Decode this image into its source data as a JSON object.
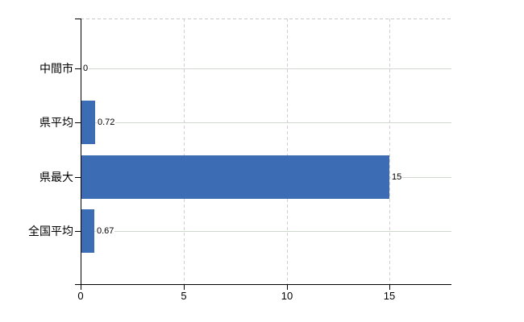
{
  "chart_data": {
    "type": "bar",
    "orientation": "horizontal",
    "title": "",
    "categories": [
      "中間市",
      "県平均",
      "県最大",
      "全国平均"
    ],
    "values": [
      0,
      0.72,
      15,
      0.67
    ],
    "value_labels": [
      "0",
      "0.72",
      "15",
      "0.67"
    ],
    "xlim": [
      0,
      18
    ],
    "xticks": [
      0,
      5,
      10,
      15
    ],
    "xtick_labels": [
      "0",
      "5",
      "10",
      "15"
    ],
    "grid": true,
    "legend": false,
    "colors": {
      "bar": "#3c6db4",
      "axis": "#000000",
      "grid_horizontal": "#cfd7cf",
      "grid_vertical": "#d5cfd5",
      "top_border": "#c9c9c9",
      "text": "#000000",
      "background": "#ffffff"
    }
  }
}
